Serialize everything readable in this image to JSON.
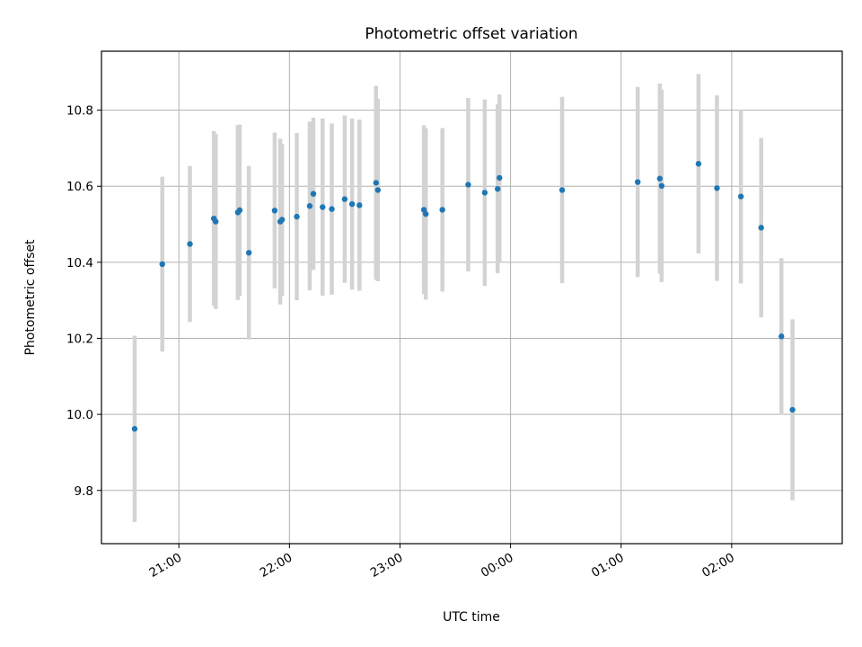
{
  "chart_data": {
    "type": "scatter",
    "title": "Photometric offset variation",
    "xlabel": "UTC time",
    "ylabel": "Photometric offset",
    "x_tick_labels": [
      "21:00",
      "22:00",
      "23:00",
      "00:00",
      "01:00",
      "02:00"
    ],
    "y_tick_labels": [
      "9.8",
      "10.0",
      "10.2",
      "10.4",
      "10.6",
      "10.8"
    ],
    "y_ticks": [
      9.8,
      10.0,
      10.2,
      10.4,
      10.6,
      10.8
    ],
    "xlim": [
      "20:18",
      "03:00"
    ],
    "ylim": [
      9.66,
      10.955
    ],
    "grid": true,
    "colors": {
      "point": "#1f77b4",
      "errorbar": "#d3d3d3",
      "grid": "#b0b0b0"
    },
    "series": [
      {
        "points": [
          {
            "x": "20:36",
            "y": 9.962,
            "err": 0.245
          },
          {
            "x": "20:51",
            "y": 10.395,
            "err": 0.23
          },
          {
            "x": "21:06",
            "y": 10.448,
            "err": 0.205
          },
          {
            "x": "21:19",
            "y": 10.515,
            "err": 0.23
          },
          {
            "x": "21:20",
            "y": 10.507,
            "err": 0.23
          },
          {
            "x": "21:32",
            "y": 10.531,
            "err": 0.23
          },
          {
            "x": "21:33",
            "y": 10.537,
            "err": 0.225
          },
          {
            "x": "21:38",
            "y": 10.425,
            "err": 0.228
          },
          {
            "x": "21:52",
            "y": 10.536,
            "err": 0.205
          },
          {
            "x": "21:55",
            "y": 10.507,
            "err": 0.218
          },
          {
            "x": "21:56",
            "y": 10.512,
            "err": 0.2
          },
          {
            "x": "22:04",
            "y": 10.52,
            "err": 0.22
          },
          {
            "x": "22:11",
            "y": 10.548,
            "err": 0.222
          },
          {
            "x": "22:13",
            "y": 10.58,
            "err": 0.2
          },
          {
            "x": "22:18",
            "y": 10.545,
            "err": 0.233
          },
          {
            "x": "22:23",
            "y": 10.54,
            "err": 0.225
          },
          {
            "x": "22:30",
            "y": 10.566,
            "err": 0.22
          },
          {
            "x": "22:34",
            "y": 10.553,
            "err": 0.225
          },
          {
            "x": "22:38",
            "y": 10.55,
            "err": 0.225
          },
          {
            "x": "22:47",
            "y": 10.609,
            "err": 0.255
          },
          {
            "x": "22:48",
            "y": 10.59,
            "err": 0.24
          },
          {
            "x": "23:13",
            "y": 10.538,
            "err": 0.222
          },
          {
            "x": "23:14",
            "y": 10.527,
            "err": 0.225
          },
          {
            "x": "23:23",
            "y": 10.538,
            "err": 0.215
          },
          {
            "x": "23:37",
            "y": 10.604,
            "err": 0.228
          },
          {
            "x": "23:46",
            "y": 10.583,
            "err": 0.245
          },
          {
            "x": "23:53",
            "y": 10.593,
            "err": 0.222
          },
          {
            "x": "23:54",
            "y": 10.622,
            "err": 0.22
          },
          {
            "x": "00:28",
            "y": 10.59,
            "err": 0.245
          },
          {
            "x": "01:09",
            "y": 10.611,
            "err": 0.25
          },
          {
            "x": "01:21",
            "y": 10.62,
            "err": 0.25
          },
          {
            "x": "01:22",
            "y": 10.601,
            "err": 0.253
          },
          {
            "x": "01:42",
            "y": 10.659,
            "err": 0.236
          },
          {
            "x": "01:52",
            "y": 10.595,
            "err": 0.244
          },
          {
            "x": "02:05",
            "y": 10.573,
            "err": 0.229
          },
          {
            "x": "02:16",
            "y": 10.491,
            "err": 0.236
          },
          {
            "x": "02:27",
            "y": 10.205,
            "err": 0.206
          },
          {
            "x": "02:33",
            "y": 10.012,
            "err": 0.238
          }
        ]
      }
    ]
  }
}
